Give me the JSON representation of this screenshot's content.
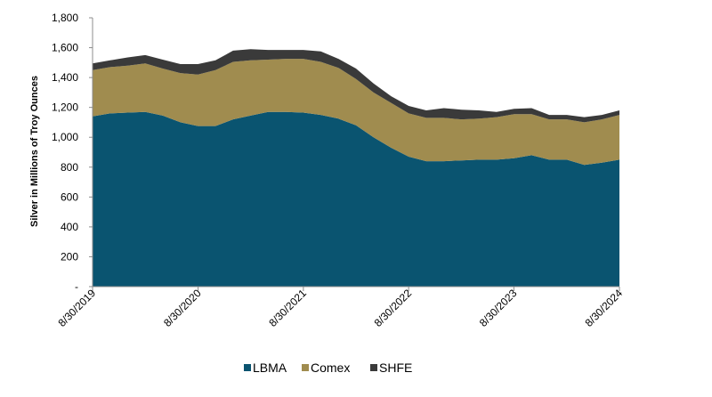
{
  "chart_data": {
    "type": "area",
    "stacked": true,
    "ylabel": "Silver in Millions of Troy Ounces",
    "xlabel": "",
    "ylim": [
      0,
      1800
    ],
    "y_ticks": [
      {
        "value": 0,
        "label": "-"
      },
      {
        "value": 200,
        "label": "200"
      },
      {
        "value": 400,
        "label": "400"
      },
      {
        "value": 600,
        "label": "600"
      },
      {
        "value": 800,
        "label": "800"
      },
      {
        "value": 1000,
        "label": "1,000"
      },
      {
        "value": 1200,
        "label": "1,200"
      },
      {
        "value": 1400,
        "label": "1,400"
      },
      {
        "value": 1600,
        "label": "1,600"
      },
      {
        "value": 1800,
        "label": "1,800"
      }
    ],
    "x_range": [
      "2019-08-30",
      "2024-08-30"
    ],
    "x_ticks": [
      {
        "date": "2019-08-30",
        "label": "8/30/2019"
      },
      {
        "date": "2020-08-30",
        "label": "8/30/2020"
      },
      {
        "date": "2021-08-30",
        "label": "8/30/2021"
      },
      {
        "date": "2022-08-30",
        "label": "8/30/2022"
      },
      {
        "date": "2023-08-30",
        "label": "8/30/2023"
      },
      {
        "date": "2024-08-30",
        "label": "8/30/2024"
      }
    ],
    "legend_position": "bottom",
    "x": [
      "2019-08",
      "2019-10",
      "2019-12",
      "2020-02",
      "2020-04",
      "2020-06",
      "2020-08",
      "2020-10",
      "2020-12",
      "2021-02",
      "2021-04",
      "2021-06",
      "2021-08",
      "2021-10",
      "2021-12",
      "2022-02",
      "2022-04",
      "2022-06",
      "2022-08",
      "2022-10",
      "2022-12",
      "2023-02",
      "2023-04",
      "2023-06",
      "2023-08",
      "2023-10",
      "2023-12",
      "2024-02",
      "2024-04",
      "2024-06",
      "2024-08"
    ],
    "series": [
      {
        "name": "LBMA",
        "color": "#0a5470",
        "values": [
          1140,
          1160,
          1165,
          1170,
          1145,
          1100,
          1075,
          1075,
          1120,
          1145,
          1170,
          1170,
          1165,
          1150,
          1125,
          1080,
          1000,
          930,
          870,
          840,
          840,
          845,
          850,
          850,
          860,
          880,
          850,
          850,
          815,
          830,
          850
        ]
      },
      {
        "name": "Comex",
        "color": "#a08c4f",
        "values": [
          310,
          310,
          315,
          325,
          315,
          330,
          345,
          375,
          385,
          370,
          350,
          355,
          360,
          355,
          340,
          310,
          300,
          300,
          290,
          290,
          290,
          275,
          275,
          285,
          295,
          275,
          270,
          270,
          285,
          290,
          300
        ]
      },
      {
        "name": "SHFE",
        "color": "#3a3a3a",
        "values": [
          45,
          45,
          55,
          55,
          60,
          60,
          70,
          65,
          75,
          75,
          65,
          60,
          60,
          70,
          60,
          70,
          60,
          45,
          50,
          50,
          65,
          65,
          55,
          35,
          35,
          40,
          30,
          30,
          35,
          30,
          30
        ]
      }
    ]
  }
}
